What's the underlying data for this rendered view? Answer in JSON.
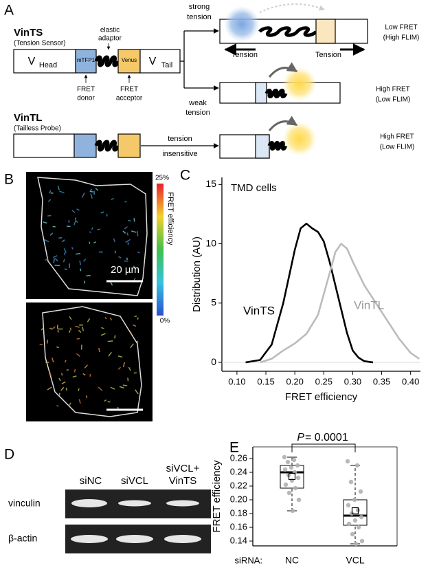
{
  "panel_letters": [
    "A",
    "B",
    "C",
    "D",
    "E"
  ],
  "diagram": {
    "vints": {
      "name": "VinTS",
      "subtitle": "(Tension Sensor)",
      "head": {
        "main": "V",
        "sub": "Head"
      },
      "donor_box": "mTFP1",
      "acceptor_box": "Venus",
      "tail": {
        "main": "V",
        "sub": "Tail"
      },
      "adaptor": [
        "elastic",
        "adaptor"
      ],
      "donor": [
        "FRET",
        "donor"
      ],
      "acceptor": [
        "FRET",
        "acceptor"
      ]
    },
    "strong": {
      "condition": [
        "strong",
        "tension"
      ],
      "force_left": "Tension",
      "force_right": "Tension",
      "result": [
        "Low FRET",
        "(High FLIM)"
      ]
    },
    "weak": {
      "condition": [
        "weak",
        "tension"
      ],
      "result": [
        "High FRET",
        "(Low FLIM)"
      ]
    },
    "vintl": {
      "name": "VinTL",
      "subtitle": "(Tailless Probe)",
      "condition": [
        "tension",
        "insensitive"
      ],
      "result": [
        "High FRET",
        "(Low FLIM)"
      ]
    }
  },
  "images": {
    "colorbar_max": "25%",
    "colorbar_min": "0%",
    "colorbar_label": "FRET efficiency",
    "scale_bar": "20 µm"
  },
  "blot": {
    "lanes": [
      [
        "siNC"
      ],
      [
        "siVCL"
      ],
      [
        "siVCL+",
        "VinTS"
      ]
    ],
    "rows": [
      "vinculin",
      "β-actin"
    ]
  },
  "chart_data": [
    {
      "type": "line",
      "title": "TMD cells",
      "x_label": "FRET efficiency",
      "y_label": "Distribution (AU)",
      "xlim": [
        0.074,
        0.417
      ],
      "xticks": [
        {
          "value": 0.1,
          "label": "0.10"
        },
        0.15,
        {
          "value": 0.2,
          "label": "0.20"
        },
        0.25,
        {
          "value": 0.3,
          "label": "0.30"
        },
        0.35,
        {
          "value": 0.4,
          "label": "0.40"
        }
      ],
      "ylim": [
        -0.75,
        15.6
      ],
      "yticks": [
        0,
        5,
        10,
        15
      ],
      "series": [
        {
          "name": "VinTS",
          "color": "#000000",
          "x": [
            0.115,
            0.14,
            0.16,
            0.18,
            0.2,
            0.21,
            0.22,
            0.23,
            0.24,
            0.25,
            0.26,
            0.27,
            0.28,
            0.29,
            0.3,
            0.31,
            0.32,
            0.335
          ],
          "values": [
            0,
            0.2,
            1.5,
            5,
            9.5,
            11.3,
            11.7,
            11.3,
            11,
            10.2,
            8.5,
            6.5,
            4.5,
            2.5,
            1,
            0.4,
            0.1,
            0
          ]
        },
        {
          "name": "VinTL",
          "color": "#bbbbbb",
          "x": [
            0.14,
            0.16,
            0.18,
            0.2,
            0.22,
            0.24,
            0.26,
            0.27,
            0.28,
            0.29,
            0.3,
            0.31,
            0.32,
            0.34,
            0.36,
            0.38,
            0.4,
            0.415
          ],
          "values": [
            0,
            0.3,
            1,
            1.6,
            2.4,
            4,
            7.5,
            9.3,
            10,
            9.6,
            8.5,
            7.5,
            6.5,
            5,
            3.5,
            2,
            0.8,
            0.3
          ]
        }
      ]
    },
    {
      "type": "box",
      "y_label": "FRET efficiency",
      "x_prefix": "siRNA:",
      "annotation": {
        "italic": "P",
        "text": "= 0.0001"
      },
      "categories": [
        "NC",
        "VCL"
      ],
      "ylim": [
        0.133,
        0.277
      ],
      "yticks": [
        0.14,
        0.16,
        0.18,
        {
          "value": 0.2,
          "label": "0.20"
        },
        0.22,
        0.24,
        0.26
      ],
      "point_color": "#b0b0b0",
      "boxes": [
        {
          "whisker_low": 0.184,
          "q1": 0.217,
          "median": 0.24,
          "q3": 0.25,
          "whisker_high": 0.262,
          "mean": 0.234,
          "points": [
            0.262,
            0.258,
            0.255,
            0.25,
            0.247,
            0.244,
            0.24,
            0.236,
            0.232,
            0.228,
            0.222,
            0.217,
            0.21,
            0.2,
            0.184
          ]
        },
        {
          "whisker_low": 0.136,
          "q1": 0.163,
          "median": 0.177,
          "q3": 0.2,
          "whisker_high": 0.25,
          "mean": 0.184,
          "points": [
            0.256,
            0.25,
            0.226,
            0.212,
            0.2,
            0.192,
            0.185,
            0.18,
            0.175,
            0.17,
            0.165,
            0.16,
            0.15,
            0.14,
            0.136
          ]
        }
      ]
    }
  ]
}
